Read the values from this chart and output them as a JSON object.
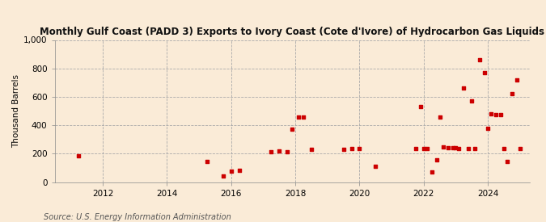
{
  "title": "Monthly Gulf Coast (PADD 3) Exports to Ivory Coast (Cote d'Ivore) of Hydrocarbon Gas Liquids",
  "ylabel": "Thousand Barrels",
  "source": "Source: U.S. Energy Information Administration",
  "background_color": "#faebd7",
  "dot_color": "#cc0000",
  "ylim": [
    0,
    1000
  ],
  "yticks": [
    0,
    200,
    400,
    600,
    800,
    1000
  ],
  "ytick_labels": [
    "0",
    "200",
    "400",
    "600",
    "800",
    "1,000"
  ],
  "xlim_start": 2010.5,
  "xlim_end": 2025.3,
  "xticks": [
    2012,
    2014,
    2016,
    2018,
    2020,
    2022,
    2024
  ],
  "data_points": [
    [
      2011.25,
      185
    ],
    [
      2015.25,
      145
    ],
    [
      2015.75,
      40
    ],
    [
      2016.0,
      75
    ],
    [
      2016.25,
      80
    ],
    [
      2017.25,
      215
    ],
    [
      2017.5,
      220
    ],
    [
      2017.75,
      215
    ],
    [
      2017.9,
      375
    ],
    [
      2018.1,
      455
    ],
    [
      2018.25,
      455
    ],
    [
      2018.5,
      230
    ],
    [
      2019.5,
      230
    ],
    [
      2019.75,
      235
    ],
    [
      2020.0,
      235
    ],
    [
      2020.5,
      110
    ],
    [
      2021.75,
      235
    ],
    [
      2021.9,
      530
    ],
    [
      2022.0,
      235
    ],
    [
      2022.1,
      235
    ],
    [
      2022.25,
      70
    ],
    [
      2022.4,
      155
    ],
    [
      2022.5,
      455
    ],
    [
      2022.6,
      245
    ],
    [
      2022.75,
      240
    ],
    [
      2022.9,
      240
    ],
    [
      2023.0,
      240
    ],
    [
      2023.1,
      235
    ],
    [
      2023.25,
      660
    ],
    [
      2023.4,
      235
    ],
    [
      2023.5,
      570
    ],
    [
      2023.6,
      235
    ],
    [
      2023.75,
      860
    ],
    [
      2023.9,
      770
    ],
    [
      2024.0,
      380
    ],
    [
      2024.1,
      480
    ],
    [
      2024.25,
      475
    ],
    [
      2024.4,
      475
    ],
    [
      2024.5,
      235
    ],
    [
      2024.6,
      145
    ],
    [
      2024.75,
      625
    ],
    [
      2024.9,
      720
    ],
    [
      2025.0,
      235
    ]
  ]
}
